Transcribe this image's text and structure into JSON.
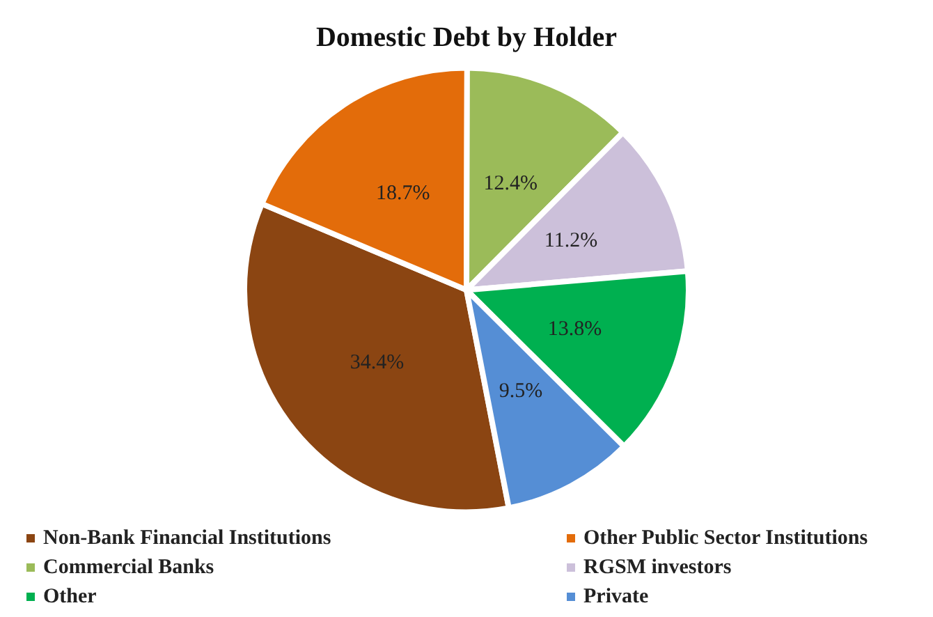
{
  "chart_data": {
    "type": "pie",
    "title": "Domestic Debt by Holder",
    "categories": [
      "Non-Bank Financial Institutions",
      "Other Public Sector Institutions",
      "Commercial Banks",
      "RGSM investors",
      "Other",
      "Private"
    ],
    "values": [
      34.4,
      18.7,
      12.4,
      11.2,
      13.8,
      9.5
    ],
    "colors": [
      "#8b4512",
      "#e36c0a",
      "#9bbb59",
      "#ccc0da",
      "#00b050",
      "#558ed5"
    ],
    "value_labels": [
      "34.4%",
      "18.7%",
      "12.4%",
      "11.2%",
      "13.8%",
      "9.5%"
    ],
    "legend": "bottom"
  }
}
